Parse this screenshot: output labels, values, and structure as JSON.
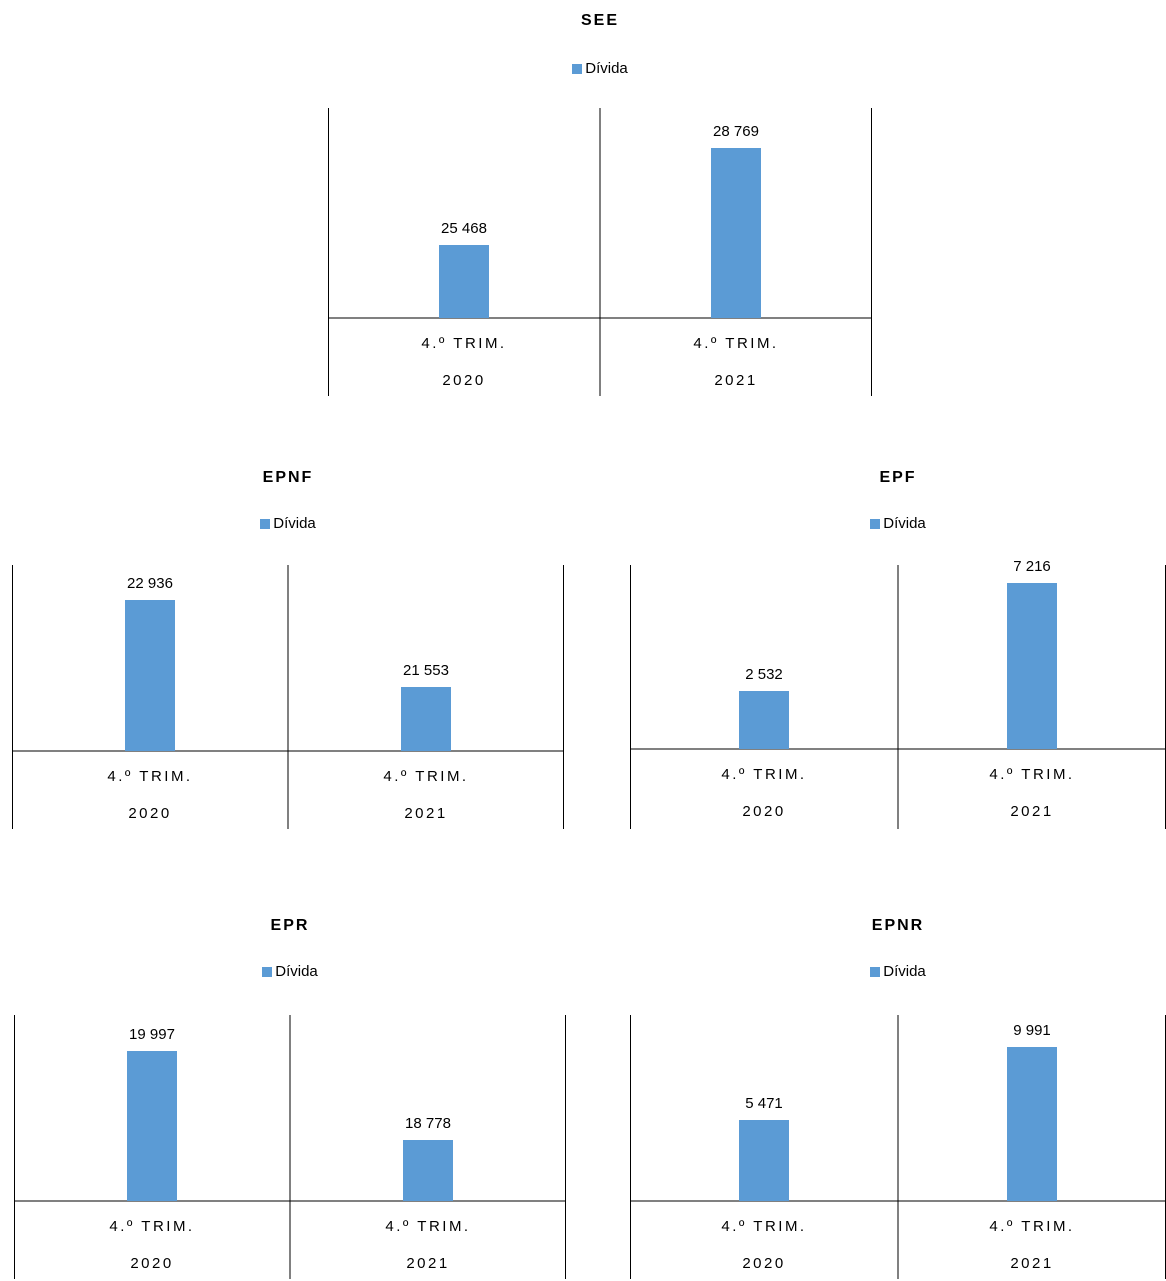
{
  "colors": {
    "bar": "#5B9BD5",
    "axis": "#000000"
  },
  "chart_data": [
    {
      "type": "bar",
      "title": "SEE",
      "categories": [
        [
          "4.º TRIM.",
          "2020"
        ],
        [
          "4.º TRIM.",
          "2021"
        ]
      ],
      "series": [
        {
          "name": "Dívida",
          "values": [
            25468,
            28769
          ]
        }
      ],
      "value_labels": [
        "25 468",
        "28 769"
      ]
    },
    {
      "type": "bar",
      "title": "EPNF",
      "categories": [
        [
          "4.º TRIM.",
          "2020"
        ],
        [
          "4.º TRIM.",
          "2021"
        ]
      ],
      "series": [
        {
          "name": "Dívida",
          "values": [
            22936,
            21553
          ]
        }
      ],
      "value_labels": [
        "22 936",
        "21 553"
      ]
    },
    {
      "type": "bar",
      "title": "EPF",
      "categories": [
        [
          "4.º TRIM.",
          "2020"
        ],
        [
          "4.º TRIM.",
          "2021"
        ]
      ],
      "series": [
        {
          "name": "Dívida",
          "values": [
            2532,
            7216
          ]
        }
      ],
      "value_labels": [
        "2 532",
        "7 216"
      ]
    },
    {
      "type": "bar",
      "title": "EPR",
      "categories": [
        [
          "4.º TRIM.",
          "2020"
        ],
        [
          "4.º TRIM.",
          "2021"
        ]
      ],
      "series": [
        {
          "name": "Dívida",
          "values": [
            19997,
            18778
          ]
        }
      ],
      "value_labels": [
        "19 997",
        "18 778"
      ]
    },
    {
      "type": "bar",
      "title": "EPNR",
      "categories": [
        [
          "4.º TRIM.",
          "2020"
        ],
        [
          "4.º TRIM.",
          "2021"
        ]
      ],
      "series": [
        {
          "name": "Dívida",
          "values": [
            5471,
            9991
          ]
        }
      ],
      "value_labels": [
        "5 471",
        "9 991"
      ]
    }
  ]
}
